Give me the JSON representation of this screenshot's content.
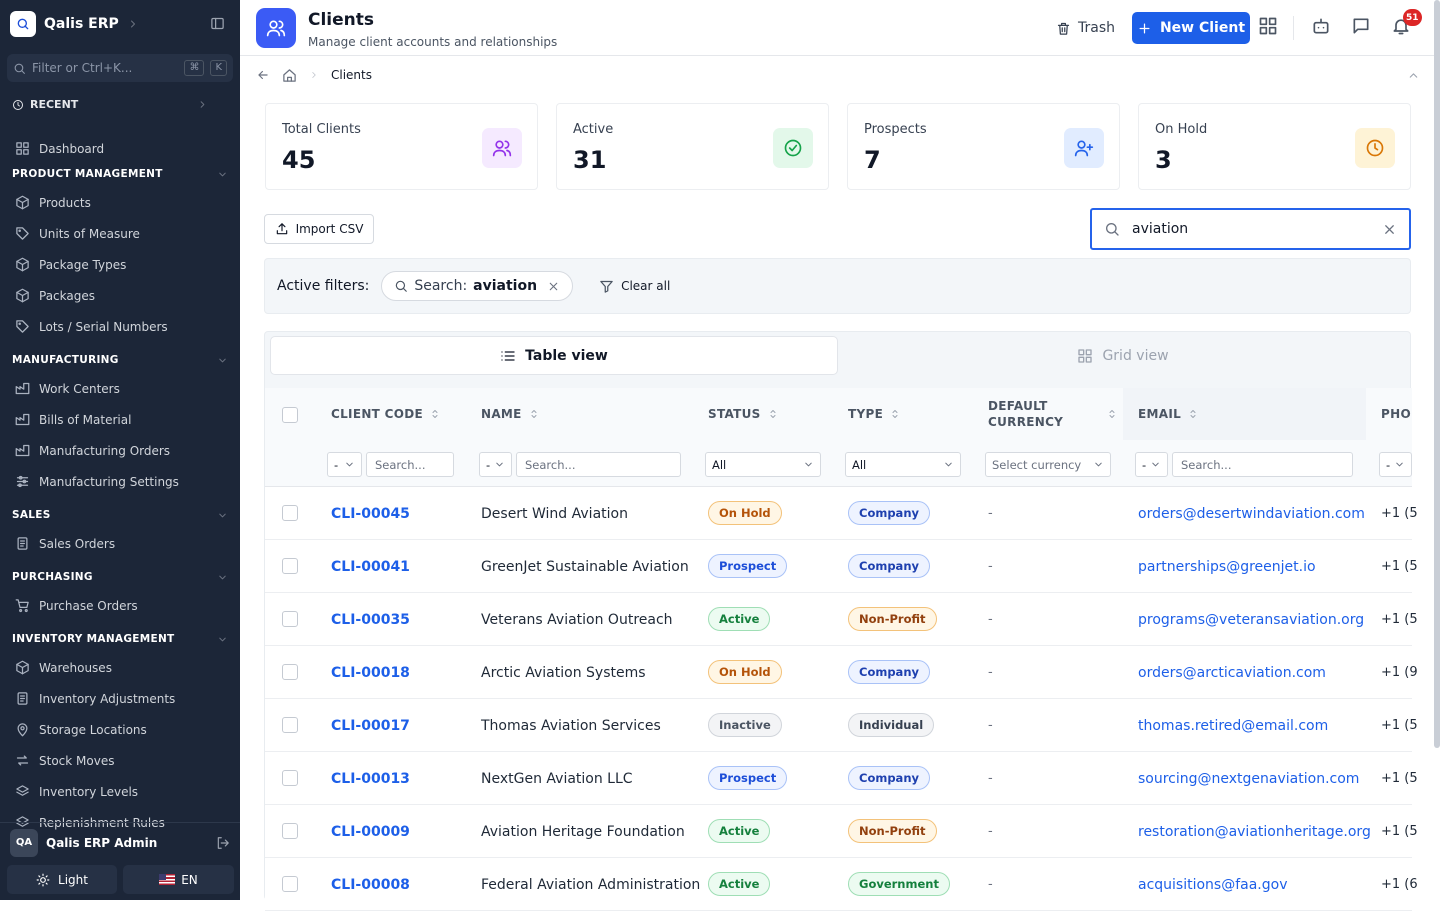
{
  "sidebar": {
    "brand": "Qalis ERP",
    "filter_placeholder": "Filter or Ctrl+K...",
    "shortcut": [
      "⌘",
      "K"
    ],
    "recent": "RECENT",
    "dashboard": "Dashboard",
    "sections": [
      {
        "title": "PRODUCT MANAGEMENT",
        "items": [
          "Products",
          "Units of Measure",
          "Package Types",
          "Packages",
          "Lots / Serial Numbers"
        ]
      },
      {
        "title": "MANUFACTURING",
        "items": [
          "Work Centers",
          "Bills of Material",
          "Manufacturing Orders",
          "Manufacturing Settings"
        ]
      },
      {
        "title": "SALES",
        "items": [
          "Sales Orders"
        ]
      },
      {
        "title": "PURCHASING",
        "items": [
          "Purchase Orders"
        ]
      },
      {
        "title": "INVENTORY MANAGEMENT",
        "items": [
          "Warehouses",
          "Inventory Adjustments",
          "Storage Locations",
          "Stock Moves",
          "Inventory Levels",
          "Replenishment Rules"
        ]
      }
    ],
    "user": {
      "initials": "QA",
      "name": "Qalis ERP Admin"
    },
    "theme": "Light",
    "language": "EN"
  },
  "header": {
    "title": "Clients",
    "subtitle": "Manage client accounts and relationships",
    "trash": "Trash",
    "new_button": "New Client",
    "notifications": 51
  },
  "breadcrumb": {
    "current": "Clients"
  },
  "stats": [
    {
      "label": "Total Clients",
      "value": 45
    },
    {
      "label": "Active",
      "value": 31
    },
    {
      "label": "Prospects",
      "value": 7
    },
    {
      "label": "On Hold",
      "value": 3
    }
  ],
  "toolbar": {
    "import": "Import CSV",
    "search": "aviation"
  },
  "filters": {
    "label": "Active filters:",
    "chip_label": "Search:",
    "chip_value": "aviation",
    "clear": "Clear all"
  },
  "views": {
    "table": "Table view",
    "grid": "Grid view"
  },
  "table": {
    "columns": [
      "CLIENT CODE",
      "NAME",
      "STATUS",
      "TYPE",
      "DEFAULT CURRENCY",
      "EMAIL",
      "PHO"
    ],
    "filter_row": {
      "operator": "-",
      "search_placeholder": "Search...",
      "all": "All",
      "currency_placeholder": "Select currency"
    },
    "rows": [
      [
        "CLI-00045",
        "Desert Wind Aviation",
        "On Hold",
        "Company",
        "-",
        "orders@desertwindaviation.com",
        "+1 (5"
      ],
      [
        "CLI-00041",
        "GreenJet Sustainable Aviation",
        "Prospect",
        "Company",
        "-",
        "partnerships@greenjet.io",
        "+1 (5"
      ],
      [
        "CLI-00035",
        "Veterans Aviation Outreach",
        "Active",
        "Non-Profit",
        "-",
        "programs@veteransaviation.org",
        "+1 (5"
      ],
      [
        "CLI-00018",
        "Arctic Aviation Systems",
        "On Hold",
        "Company",
        "-",
        "orders@arcticaviation.com",
        "+1 (9"
      ],
      [
        "CLI-00017",
        "Thomas Aviation Services",
        "Inactive",
        "Individual",
        "-",
        "thomas.retired@email.com",
        "+1 (5"
      ],
      [
        "CLI-00013",
        "NextGen Aviation LLC",
        "Prospect",
        "Company",
        "-",
        "sourcing@nextgenaviation.com",
        "+1 (5"
      ],
      [
        "CLI-00009",
        "Aviation Heritage Foundation",
        "Active",
        "Non-Profit",
        "-",
        "restoration@aviationheritage.org",
        "+1 (5"
      ],
      [
        "CLI-00008",
        "Federal Aviation Administration",
        "Active",
        "Government",
        "-",
        "acquisitions@faa.gov",
        "+1 (6"
      ]
    ]
  }
}
